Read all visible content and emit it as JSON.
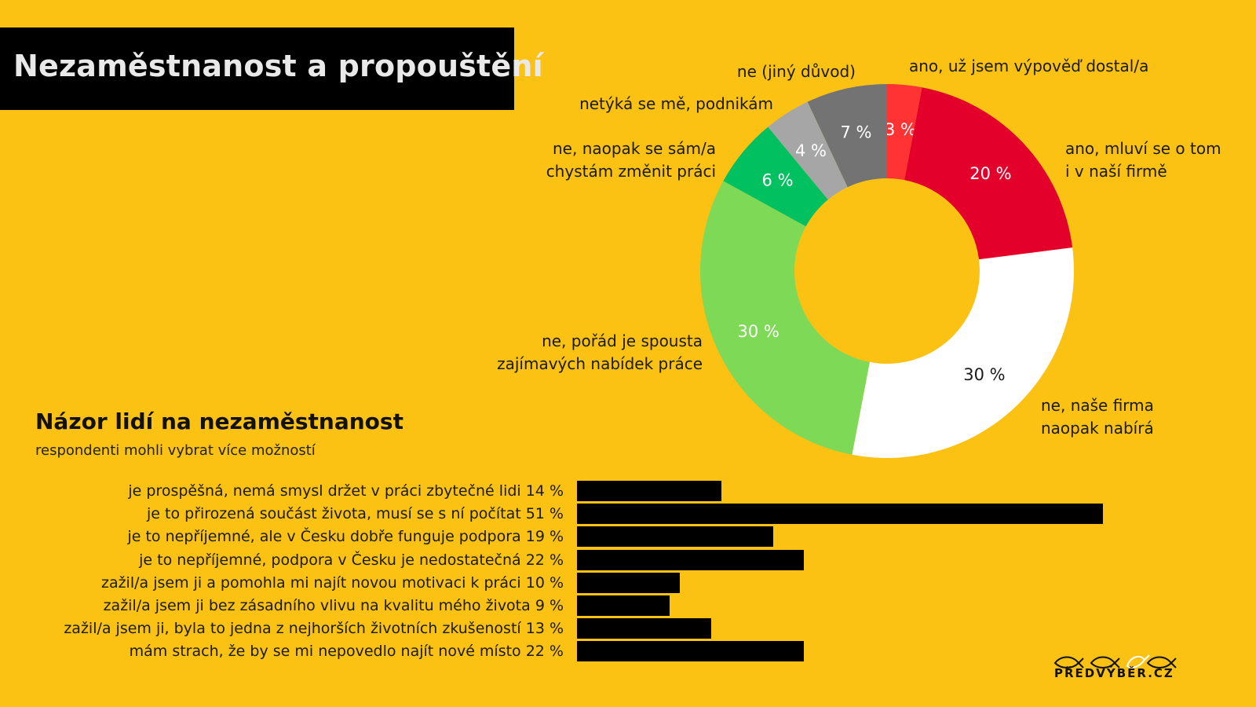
{
  "title": "Nezaměstnanost a propouštění",
  "chart_data": [
    {
      "type": "pie",
      "variant": "donut",
      "slices": [
        {
          "label": "ano, už jsem výpověď dostal/a",
          "value": 3,
          "value_label": "3 %",
          "color": "#FF3333",
          "text_color": "#FFFFFF"
        },
        {
          "label": "ano, mluví se o tom i v naší firmě",
          "value": 20,
          "value_label": "20 %",
          "color": "#E3002B",
          "text_color": "#FFFFFF"
        },
        {
          "label": "ne, naše firma naopak nabírá",
          "value": 30,
          "value_label": "30 %",
          "color": "#FFFFFF",
          "text_color": "#1A1A1A"
        },
        {
          "label": "ne, pořád je spousta zajímavých nabídek práce",
          "value": 30,
          "value_label": "30 %",
          "color": "#7ED957",
          "text_color": "#FFFFFF"
        },
        {
          "label": "ne, naopak se sám/a chystám změnit práci",
          "value": 6,
          "value_label": "6 %",
          "color": "#00C060",
          "text_color": "#FFFFFF"
        },
        {
          "label": "netýká se mě, podnikám",
          "value": 4,
          "value_label": "4 %",
          "color": "#A6A6A6",
          "text_color": "#FFFFFF"
        },
        {
          "label": "ne (jiný důvod)",
          "value": 7,
          "value_label": "7 %",
          "color": "#737373",
          "text_color": "#FFFFFF"
        }
      ]
    },
    {
      "type": "bar",
      "orientation": "horizontal",
      "title": "Názor lidí na nezaměstnanost",
      "subtitle": "respondenti mohli vybrat více možností",
      "bar_color": "#000000",
      "xlim": [
        0,
        51
      ],
      "bars": [
        {
          "category": "je prospěšná, nemá smysl držet v práci zbytečné lidi",
          "value": 14,
          "value_label": "14 %"
        },
        {
          "category": "je to přirozená součást života, musí se s ní počítat",
          "value": 51,
          "value_label": "51 %"
        },
        {
          "category": "je to nepříjemné, ale v Česku dobře funguje podpora",
          "value": 19,
          "value_label": "19 %"
        },
        {
          "category": "je to nepříjemné, podpora v Česku je nedostatečná",
          "value": 22,
          "value_label": "22 %"
        },
        {
          "category": "zažil/a jsem ji a pomohla mi najít novou motivaci k práci",
          "value": 10,
          "value_label": "10 %"
        },
        {
          "category": "zažil/a jsem ji bez zásadního vlivu na kvalitu mého života",
          "value": 9,
          "value_label": "9 %"
        },
        {
          "category": "zažil/a jsem ji, byla to jedna z nejhorších životních zkušeností",
          "value": 13,
          "value_label": "13 %"
        },
        {
          "category": "mám strach, že by se mi nepovedlo najít nové místo",
          "value": 22,
          "value_label": "22 %"
        }
      ]
    }
  ],
  "donut_label_lines": [
    [
      "ano, už jsem výpověď dostal/a"
    ],
    [
      "ano, mluví se o tom",
      "i v naší firmě"
    ],
    [
      "ne, naše firma",
      "naopak nabírá"
    ],
    [
      "ne, pořád je spousta",
      "zajímavých nabídek práce"
    ],
    [
      "ne, naopak se sám/a",
      "chystám změnit práci"
    ],
    [
      "netýká se mě, podnikám"
    ],
    [
      "ne (jiný důvod)"
    ]
  ],
  "logo": {
    "text": "PŘEDVÝBĚR.CZ",
    "icon": "fish-logo-icon"
  }
}
